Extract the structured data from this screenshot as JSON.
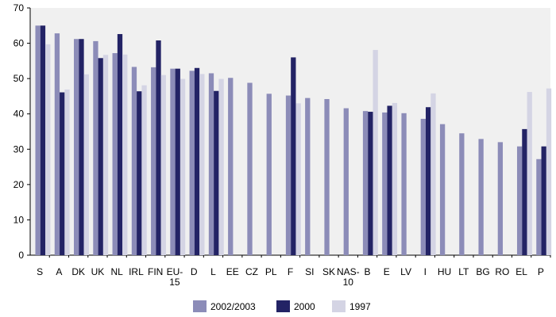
{
  "chart_data": {
    "type": "bar",
    "title": "",
    "xlabel": "",
    "ylabel": "",
    "ylim": [
      0,
      70
    ],
    "yticks": [
      0,
      10,
      20,
      30,
      40,
      50,
      60,
      70
    ],
    "grid": false,
    "legend_position": "bottom",
    "categories": [
      "S",
      "A",
      "DK",
      "UK",
      "NL",
      "IRL",
      "FIN",
      "EU-15",
      "D",
      "L",
      "EE",
      "CZ",
      "PL",
      "F",
      "SI",
      "SK",
      "NAS-10",
      "B",
      "E",
      "LV",
      "I",
      "HU",
      "LT",
      "BG",
      "RO",
      "EL",
      "P"
    ],
    "category_lines": [
      [
        "S"
      ],
      [
        "A"
      ],
      [
        "DK"
      ],
      [
        "UK"
      ],
      [
        "NL"
      ],
      [
        "IRL"
      ],
      [
        "FIN"
      ],
      [
        "EU-",
        "15"
      ],
      [
        "D"
      ],
      [
        "L"
      ],
      [
        "EE"
      ],
      [
        "CZ"
      ],
      [
        "PL"
      ],
      [
        "F"
      ],
      [
        "SI"
      ],
      [
        "SK"
      ],
      [
        "NAS-",
        "10"
      ],
      [
        "B"
      ],
      [
        "E"
      ],
      [
        "LV"
      ],
      [
        "I"
      ],
      [
        "HU"
      ],
      [
        "LT"
      ],
      [
        "BG"
      ],
      [
        "RO"
      ],
      [
        "EL"
      ],
      [
        "P"
      ]
    ],
    "series": [
      {
        "name": "2002/2003",
        "color": "#8c8cb8",
        "values": [
          65.0,
          62.8,
          61.2,
          60.6,
          57.2,
          53.3,
          53.2,
          52.8,
          52.2,
          51.5,
          50.2,
          48.8,
          45.7,
          45.2,
          44.5,
          44.2,
          41.6,
          40.8,
          40.4,
          40.2,
          38.6,
          37.1,
          34.5,
          32.9,
          32.0,
          30.8,
          27.2
        ]
      },
      {
        "name": "2000",
        "color": "#232365",
        "values": [
          65.0,
          46.1,
          61.2,
          55.8,
          62.6,
          46.4,
          60.8,
          52.8,
          53.0,
          46.5,
          null,
          null,
          null,
          56.0,
          null,
          null,
          null,
          40.6,
          42.3,
          null,
          41.9,
          null,
          null,
          null,
          null,
          35.7,
          30.8
        ]
      },
      {
        "name": "1997",
        "color": "#d4d4e4",
        "values": [
          59.7,
          46.9,
          51.2,
          56.7,
          56.8,
          48.1,
          51.0,
          49.9,
          51.3,
          49.9,
          null,
          null,
          null,
          43.0,
          null,
          null,
          null,
          58.1,
          43.1,
          null,
          45.8,
          null,
          null,
          null,
          null,
          46.2,
          47.2
        ]
      }
    ]
  }
}
